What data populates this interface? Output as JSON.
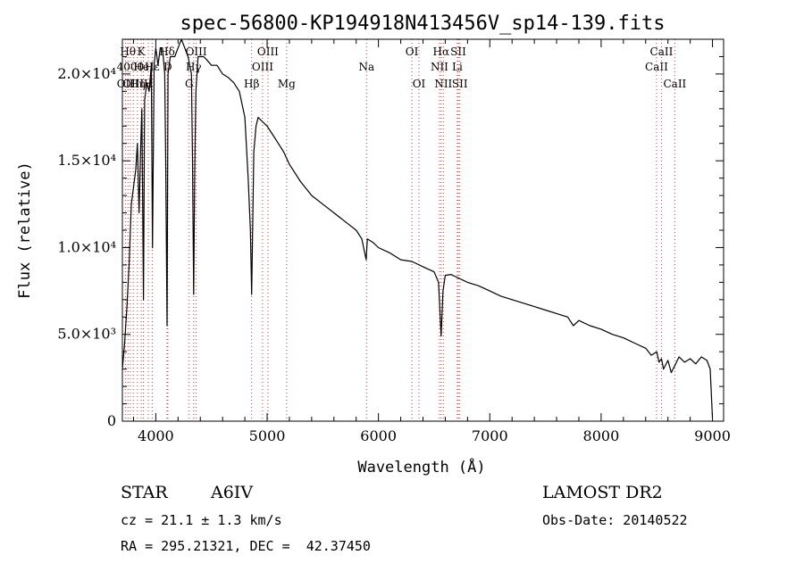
{
  "chart_data": {
    "type": "line",
    "title": "spec-56800-KP194918N413456V_sp14-139.fits",
    "xlabel": "Wavelength (Å)",
    "ylabel": "Flux (relative)",
    "xlim": [
      3700,
      9100
    ],
    "ylim": [
      0,
      22000
    ],
    "grid": false,
    "x_ticks": [
      {
        "value": 4000,
        "label": "4000"
      },
      {
        "value": 5000,
        "label": "5000"
      },
      {
        "value": 6000,
        "label": "6000"
      },
      {
        "value": 7000,
        "label": "7000"
      },
      {
        "value": 8000,
        "label": "8000"
      },
      {
        "value": 9000,
        "label": "9000"
      }
    ],
    "y_ticks": [
      {
        "value": 0,
        "label": "0"
      },
      {
        "value": 5000,
        "label": "5.0×10³"
      },
      {
        "value": 10000,
        "label": "1.0×10⁴"
      },
      {
        "value": 15000,
        "label": "1.5×10⁴"
      },
      {
        "value": 20000,
        "label": "2.0×10⁴"
      }
    ],
    "series": [
      {
        "color": "#000000",
        "x": [
          3700,
          3720,
          3740,
          3760,
          3780,
          3800,
          3820,
          3835,
          3850,
          3865,
          3875,
          3889,
          3900,
          3920,
          3940,
          3960,
          3970,
          3985,
          4000,
          4020,
          4040,
          4060,
          4080,
          4090,
          4101,
          4110,
          4130,
          4150,
          4170,
          4200,
          4230,
          4260,
          4290,
          4320,
          4330,
          4340,
          4350,
          4360,
          4380,
          4400,
          4430,
          4460,
          4500,
          4550,
          4600,
          4650,
          4700,
          4750,
          4800,
          4830,
          4850,
          4861,
          4870,
          4880,
          4900,
          4920,
          4950,
          5000,
          5050,
          5100,
          5150,
          5200,
          5300,
          5400,
          5500,
          5600,
          5700,
          5800,
          5850,
          5890,
          5900,
          5950,
          6000,
          6100,
          6200,
          6300,
          6400,
          6500,
          6540,
          6563,
          6580,
          6600,
          6650,
          6700,
          6800,
          6900,
          7000,
          7100,
          7200,
          7300,
          7400,
          7500,
          7600,
          7700,
          7750,
          7800,
          7900,
          8000,
          8100,
          8200,
          8300,
          8400,
          8450,
          8500,
          8520,
          8542,
          8560,
          8600,
          8630,
          8662,
          8700,
          8750,
          8800,
          8850,
          8900,
          8950,
          8980,
          9000
        ],
        "y": [
          3000,
          4500,
          6500,
          9000,
          12500,
          13500,
          14500,
          16000,
          12000,
          16000,
          18000,
          7000,
          18500,
          19500,
          19000,
          20500,
          10000,
          20500,
          21500,
          20500,
          21500,
          21500,
          20000,
          14500,
          5500,
          20000,
          21000,
          21000,
          21000,
          21500,
          22000,
          21500,
          21000,
          20000,
          15000,
          7300,
          14500,
          19000,
          21000,
          21000,
          21000,
          20800,
          20500,
          20500,
          20000,
          19800,
          19500,
          19000,
          17500,
          14000,
          11000,
          7300,
          11000,
          15500,
          17000,
          17500,
          17300,
          17000,
          16500,
          16000,
          15500,
          14800,
          13800,
          13000,
          12500,
          12000,
          11500,
          11000,
          10500,
          9300,
          10500,
          10300,
          10000,
          9700,
          9300,
          9200,
          8900,
          8600,
          8000,
          4900,
          7500,
          8400,
          8450,
          8300,
          8000,
          7800,
          7500,
          7200,
          7000,
          6800,
          6600,
          6400,
          6200,
          6000,
          5500,
          5800,
          5500,
          5300,
          5000,
          4800,
          4500,
          4200,
          3800,
          4000,
          3400,
          3600,
          3000,
          3500,
          2800,
          3200,
          3700,
          3400,
          3600,
          3300,
          3700,
          3500,
          3000,
          200
        ]
      }
    ],
    "lines": [
      {
        "x": 3727,
        "label": "OII",
        "row": 1
      },
      {
        "x": 3750,
        "label": "Hθ",
        "row": 3
      },
      {
        "x": 3771,
        "label": "4000",
        "row": 2
      },
      {
        "x": 3798,
        "label": "OIII",
        "row": 1
      },
      {
        "x": 3835,
        "label": "Hη",
        "row": 1
      },
      {
        "x": 3869,
        "label": "K",
        "row": 3
      },
      {
        "x": 3889,
        "label": "HeI",
        "row": 2
      },
      {
        "x": 3933,
        "label": "H",
        "row": 1
      },
      {
        "x": 3968,
        "label": "Hε",
        "row": 2
      },
      {
        "x": 4101,
        "label": "Hδ",
        "row": 3
      },
      {
        "x": 4108,
        "label": "D",
        "row": 2
      },
      {
        "x": 4300,
        "label": "G",
        "row": 1
      },
      {
        "x": 4340,
        "label": "Hγ",
        "row": 2
      },
      {
        "x": 4363,
        "label": "OIII",
        "row": 3
      },
      {
        "x": 4861,
        "label": "Hβ",
        "row": 1
      },
      {
        "x": 4959,
        "label": "OIII",
        "row": 2
      },
      {
        "x": 5007,
        "label": "OIII",
        "row": 3
      },
      {
        "x": 5175,
        "label": "Mg",
        "row": 1
      },
      {
        "x": 5893,
        "label": "Na",
        "row": 2
      },
      {
        "x": 6300,
        "label": "OI",
        "row": 3
      },
      {
        "x": 6364,
        "label": "OI",
        "row": 1
      },
      {
        "x": 6548,
        "label": "NII",
        "row": 2
      },
      {
        "x": 6563,
        "label": "Hα",
        "row": 3
      },
      {
        "x": 6583,
        "label": "NII",
        "row": 1
      },
      {
        "x": 6708,
        "label": "Li",
        "row": 2
      },
      {
        "x": 6717,
        "label": "SII",
        "row": 3
      },
      {
        "x": 6731,
        "label": "SII",
        "row": 1
      },
      {
        "x": 8498,
        "label": "CaII",
        "row": 2
      },
      {
        "x": 8542,
        "label": "CaII",
        "row": 3
      },
      {
        "x": 8662,
        "label": "CaII",
        "row": 1
      }
    ]
  },
  "footer": {
    "object_class": "STAR",
    "subclass": "A6IV",
    "survey": "LAMOST DR2",
    "cz": "cz = 21.1 ± 1.3 km/s",
    "obs_date": "Obs-Date: 20140522",
    "coords": "RA = 295.21321, DEC =  42.37450"
  }
}
